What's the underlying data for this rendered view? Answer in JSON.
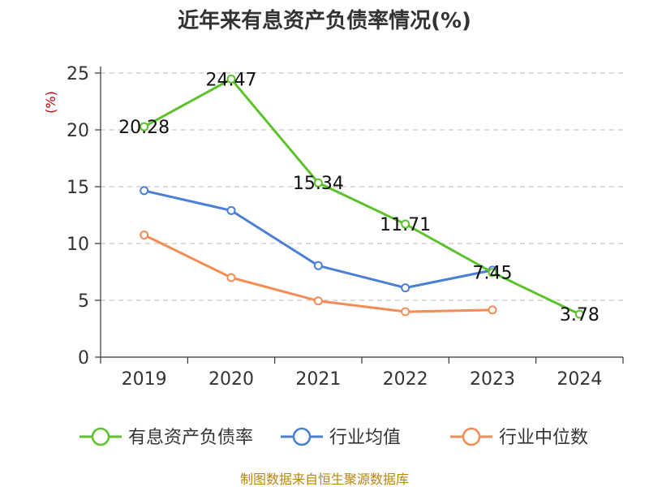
{
  "chart_data": {
    "type": "line",
    "title": "近年来有息资产负债率情况(%)",
    "ylabel": "(%)",
    "categories": [
      "2019",
      "2020",
      "2021",
      "2022",
      "2023",
      "2024"
    ],
    "y_ticks": [
      "0",
      "5",
      "10",
      "15",
      "20",
      "25"
    ],
    "ylim": [
      0,
      25
    ],
    "grid": "horizontal-dashed",
    "legend_position": "bottom",
    "series": [
      {
        "name": "有息资产负债率",
        "color": "#5cc12a",
        "values": [
          20.28,
          24.47,
          15.34,
          11.71,
          7.45,
          3.78
        ],
        "labels": [
          "20.28",
          "24.47",
          "15.34",
          "11.71",
          "7.45",
          "3.78"
        ]
      },
      {
        "name": "行业均值",
        "color": "#4a7fd6",
        "values": [
          14.65,
          12.9,
          8.05,
          6.1,
          7.65,
          null
        ]
      },
      {
        "name": "行业中位数",
        "color": "#f58c55",
        "values": [
          10.75,
          7.0,
          4.95,
          4.0,
          4.15,
          null
        ]
      }
    ]
  },
  "source": "制图数据来自恒生聚源数据库"
}
